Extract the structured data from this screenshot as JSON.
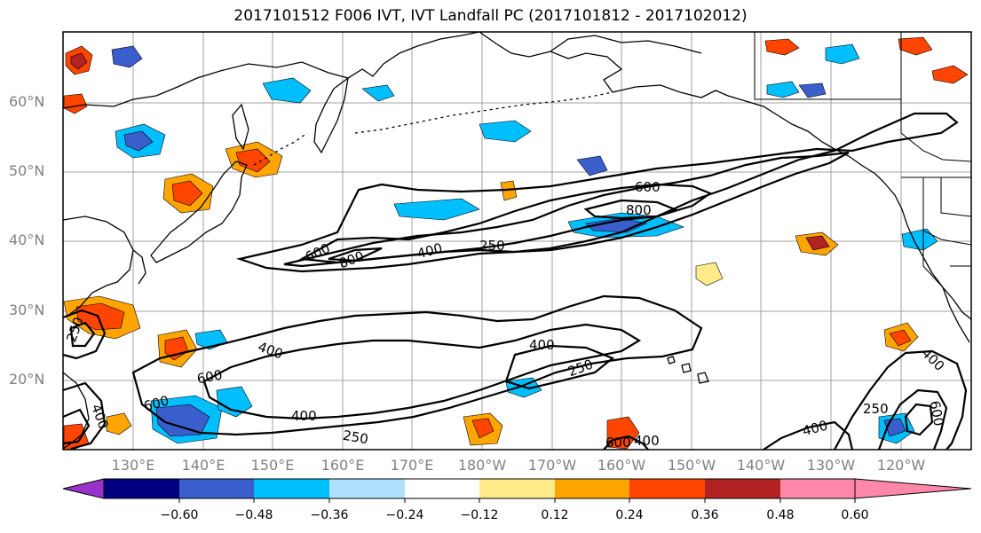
{
  "title": "2017101512 F006 IVT, IVT Landfall PC (2017101812 - 2017102012)",
  "lat_labels": [
    "60°N",
    "50°N",
    "40°N",
    "30°N",
    "20°N"
  ],
  "lon_labels": [
    "130°E",
    "140°E",
    "150°E",
    "160°E",
    "170°E",
    "180°W",
    "170°W",
    "160°W",
    "150°W",
    "140°W",
    "130°W",
    "120°W"
  ],
  "colorbar": {
    "ticks": [
      "−0.60",
      "−0.48",
      "−0.36",
      "−0.24",
      "−0.12",
      "0.12",
      "0.24",
      "0.36",
      "0.48",
      "0.60"
    ],
    "colors": [
      "#9932cc",
      "#000080",
      "#3a5fcd",
      "#00bfff",
      "#b0e2ff",
      "#ffffff",
      "#ffeb8a",
      "#ffa500",
      "#ff4500",
      "#b22222",
      "#ff88aa"
    ]
  },
  "contour_labels": [
    {
      "text": "600"
    },
    {
      "text": "800"
    },
    {
      "text": "600"
    },
    {
      "text": "800"
    },
    {
      "text": "400"
    },
    {
      "text": "250"
    },
    {
      "text": "400"
    },
    {
      "text": "600"
    },
    {
      "text": "600"
    },
    {
      "text": "400"
    },
    {
      "text": "250"
    },
    {
      "text": "400"
    },
    {
      "text": "250"
    },
    {
      "text": "600"
    },
    {
      "text": "400"
    },
    {
      "text": "400"
    },
    {
      "text": "250"
    },
    {
      "text": "600"
    },
    {
      "text": "400"
    },
    {
      "text": "400"
    },
    {
      "text": "250"
    }
  ]
}
